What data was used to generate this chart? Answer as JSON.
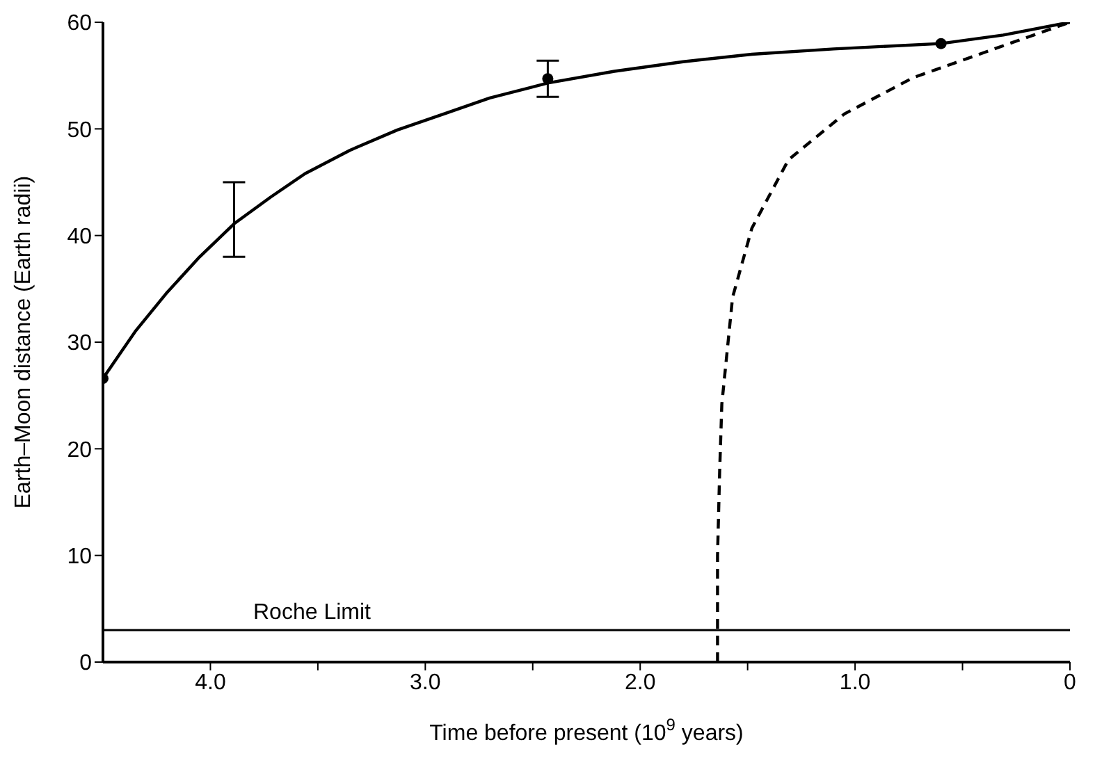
{
  "chart_data": {
    "type": "line",
    "xlabel": "Time before present (10$^{9}$ years)",
    "ylabel": "Earth–Moon distance (Earth radii)",
    "xlim": [
      4.5,
      0
    ],
    "xticks": [
      {
        "value": 4,
        "label": "4.0"
      },
      {
        "value": 3.5,
        "label": null
      },
      {
        "value": 3,
        "label": "3.0"
      },
      {
        "value": 2.5,
        "label": null
      },
      {
        "value": 2,
        "label": "2.0"
      },
      {
        "value": 1.5,
        "label": null
      },
      {
        "value": 1,
        "label": "1.0"
      },
      {
        "value": 0.5,
        "label": null
      },
      0
    ],
    "ylim": [
      0,
      60
    ],
    "yticks": [
      0,
      10,
      20,
      30,
      40,
      50,
      60
    ],
    "ref_lines": [
      {
        "axis": "y",
        "value": 3,
        "label": "Roche Limit",
        "color": "#000000"
      }
    ],
    "series": [
      {
        "color": "#000000",
        "line_style": "solid",
        "marker": "none",
        "x": [
          4.5,
          4.35,
          4.2,
          4.05,
          3.89,
          3.72,
          3.56,
          3.35,
          3.13,
          2.9,
          2.7,
          2.43,
          2.12,
          1.8,
          1.48,
          1.1,
          0.6,
          0.31,
          0
        ],
        "values": [
          26.6,
          31.0,
          34.7,
          38.0,
          41.1,
          43.6,
          45.8,
          48.0,
          49.9,
          51.5,
          52.9,
          54.3,
          55.4,
          56.3,
          57.0,
          57.5,
          58.0,
          58.8,
          60
        ],
        "errors": [
          null,
          null,
          null,
          null,
          [
            38.0,
            45.0
          ],
          null,
          null,
          null,
          null,
          null,
          null,
          null,
          null,
          null,
          null,
          null,
          null,
          null,
          null
        ]
      },
      {
        "color": "#000000",
        "line_style": "dashed",
        "marker": "none",
        "x": [
          1.64,
          1.64,
          1.63,
          1.62,
          1.57,
          1.48,
          1.31,
          1.05,
          0.73,
          0.31,
          0
        ],
        "values": [
          0,
          10,
          18,
          24.2,
          34.2,
          40.7,
          47.1,
          51.4,
          54.8,
          57.8,
          60
        ]
      },
      {
        "type": "scatter",
        "color": "#000000",
        "marker": "circle",
        "x": [
          4.5,
          2.43,
          0.6
        ],
        "values": [
          26.6,
          54.7,
          58.0
        ],
        "errors": [
          null,
          [
            53.0,
            56.4
          ],
          null
        ]
      }
    ]
  }
}
